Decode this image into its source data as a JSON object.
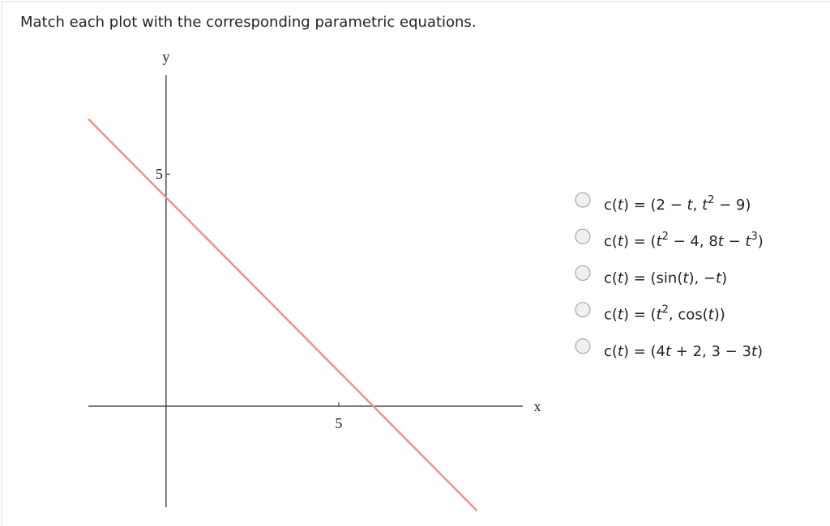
{
  "question": "Match each plot with the corresponding parametric equations.",
  "plot": {
    "x_label": "x",
    "y_label": "y",
    "xlim": [
      -2.25,
      10.33
    ],
    "ylim": [
      -2.18,
      7.13
    ],
    "xticks": [
      5
    ],
    "yticks": [
      5
    ],
    "line": {
      "color": "#f4908a",
      "x": [
        -2.25,
        9
      ],
      "y": [
        6.1875,
        -2.25
      ]
    }
  },
  "options": [
    {
      "runs": [
        {
          "text": "c(",
          "style": "normal"
        },
        {
          "text": "t",
          "style": "italic"
        },
        {
          "text": ") = (2 − ",
          "style": "normal"
        },
        {
          "text": "t",
          "style": "italic"
        },
        {
          "text": ", ",
          "style": "normal"
        },
        {
          "text": "t",
          "style": "italic"
        },
        {
          "text": "2",
          "style": "sup"
        },
        {
          "text": " − 9)",
          "style": "normal"
        }
      ]
    },
    {
      "runs": [
        {
          "text": "c(",
          "style": "normal"
        },
        {
          "text": "t",
          "style": "italic"
        },
        {
          "text": ") = (",
          "style": "normal"
        },
        {
          "text": "t",
          "style": "italic"
        },
        {
          "text": "2",
          "style": "sup"
        },
        {
          "text": " − 4, 8",
          "style": "normal"
        },
        {
          "text": "t",
          "style": "italic"
        },
        {
          "text": " − ",
          "style": "normal"
        },
        {
          "text": "t",
          "style": "italic"
        },
        {
          "text": "3",
          "style": "sup"
        },
        {
          "text": ")",
          "style": "normal"
        }
      ]
    },
    {
      "runs": [
        {
          "text": "c(",
          "style": "normal"
        },
        {
          "text": "t",
          "style": "italic"
        },
        {
          "text": ") = (sin(",
          "style": "normal"
        },
        {
          "text": "t",
          "style": "italic"
        },
        {
          "text": "), −",
          "style": "normal"
        },
        {
          "text": "t",
          "style": "italic"
        },
        {
          "text": ")",
          "style": "normal"
        }
      ]
    },
    {
      "runs": [
        {
          "text": "c(",
          "style": "normal"
        },
        {
          "text": "t",
          "style": "italic"
        },
        {
          "text": ") = (",
          "style": "normal"
        },
        {
          "text": "t",
          "style": "italic"
        },
        {
          "text": "2",
          "style": "sup"
        },
        {
          "text": ", cos(",
          "style": "normal"
        },
        {
          "text": "t",
          "style": "italic"
        },
        {
          "text": "))",
          "style": "normal"
        }
      ]
    },
    {
      "runs": [
        {
          "text": "c(",
          "style": "normal"
        },
        {
          "text": "t",
          "style": "italic"
        },
        {
          "text": ") = (4",
          "style": "normal"
        },
        {
          "text": "t",
          "style": "italic"
        },
        {
          "text": " + 2, 3 − 3",
          "style": "normal"
        },
        {
          "text": "t",
          "style": "italic"
        },
        {
          "text": ")",
          "style": "normal"
        }
      ]
    }
  ]
}
